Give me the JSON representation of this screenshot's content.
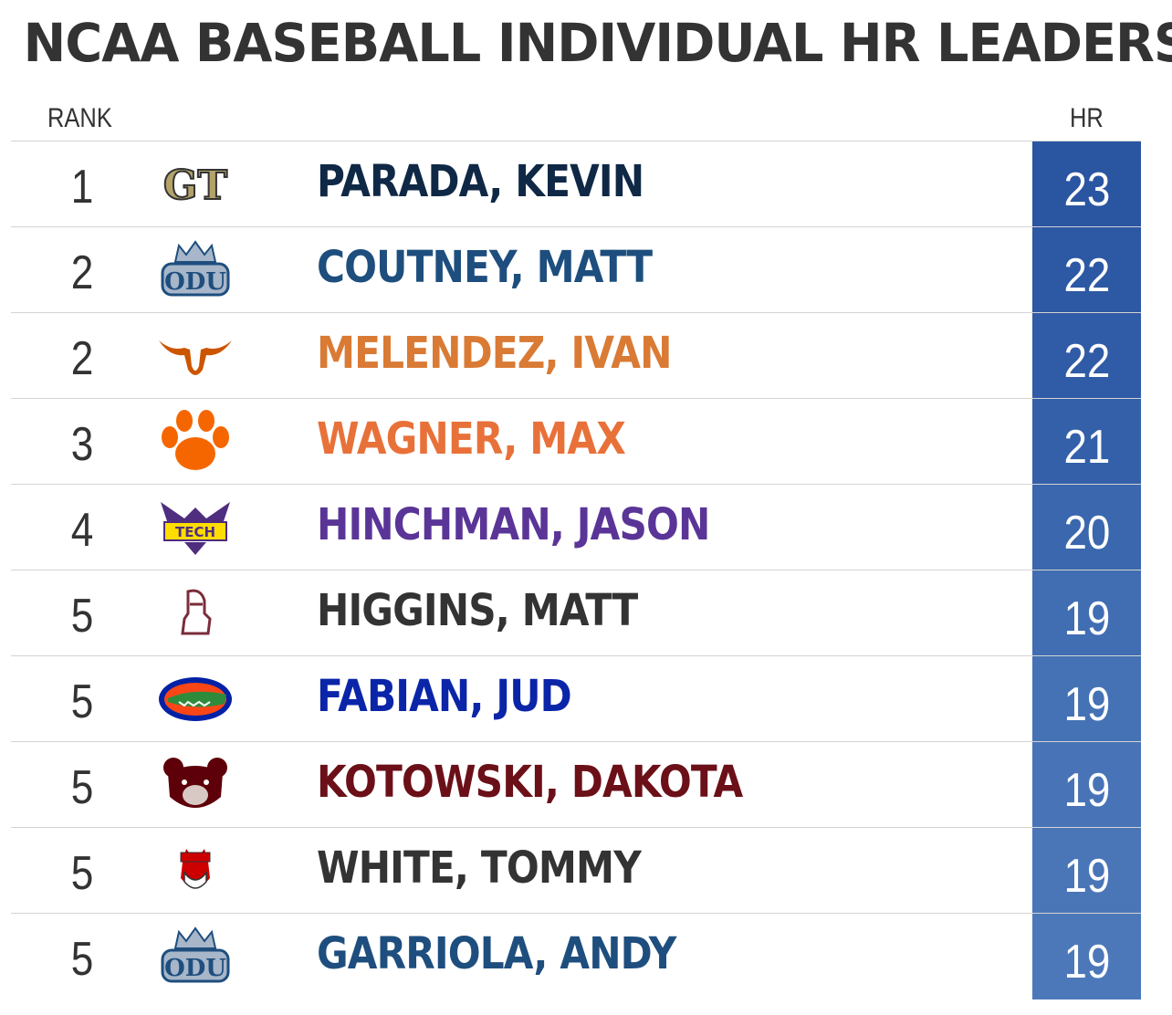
{
  "chart_data": {
    "type": "table",
    "title": "NCAA BASEBALL INDIVIDUAL HR LEADERS",
    "columns": [
      "RANK",
      "HR"
    ],
    "rows": [
      {
        "rank": "1",
        "name": "PARADA, KEVIN",
        "hr": "23",
        "logo": "georgia-tech-logo",
        "name_color": "#0f2846",
        "hr_color": "#2a55a0"
      },
      {
        "rank": "2",
        "name": "COUTNEY, MATT",
        "hr": "22",
        "logo": "odu-logo",
        "name_color": "#1e4e7e",
        "hr_color": "#2d58a3"
      },
      {
        "rank": "2",
        "name": "MELENDEZ, IVAN",
        "hr": "22",
        "logo": "texas-longhorn-logo",
        "name_color": "#d97a35",
        "hr_color": "#305ba6"
      },
      {
        "rank": "3",
        "name": "WAGNER, MAX",
        "hr": "21",
        "logo": "clemson-paw-logo",
        "name_color": "#e8713a",
        "hr_color": "#3360a9"
      },
      {
        "rank": "4",
        "name": "HINCHMAN, JASON",
        "hr": "20",
        "logo": "tennessee-tech-logo",
        "name_color": "#5a3597",
        "hr_color": "#3a67ad"
      },
      {
        "rank": "5",
        "name": "HIGGINS, MATT",
        "hr": "19",
        "logo": "knight-logo",
        "name_color": "#333333",
        "hr_color": "#416db2"
      },
      {
        "rank": "5",
        "name": "FABIAN, JUD",
        "hr": "19",
        "logo": "florida-gator-logo",
        "name_color": "#0b25a8",
        "hr_color": "#4572b5"
      },
      {
        "rank": "5",
        "name": "KOTOWSKI, DAKOTA",
        "hr": "19",
        "logo": "missouri-state-bear-logo",
        "name_color": "#6b1018",
        "hr_color": "#4874b7"
      },
      {
        "rank": "5",
        "name": "WHITE, TOMMY",
        "hr": "19",
        "logo": "nc-state-wolf-logo",
        "name_color": "#333333",
        "hr_color": "#4a76b8"
      },
      {
        "rank": "5",
        "name": "GARRIOLA, ANDY",
        "hr": "19",
        "logo": "odu-logo",
        "name_color": "#1e4e7e",
        "hr_color": "#4c78b9"
      }
    ]
  }
}
